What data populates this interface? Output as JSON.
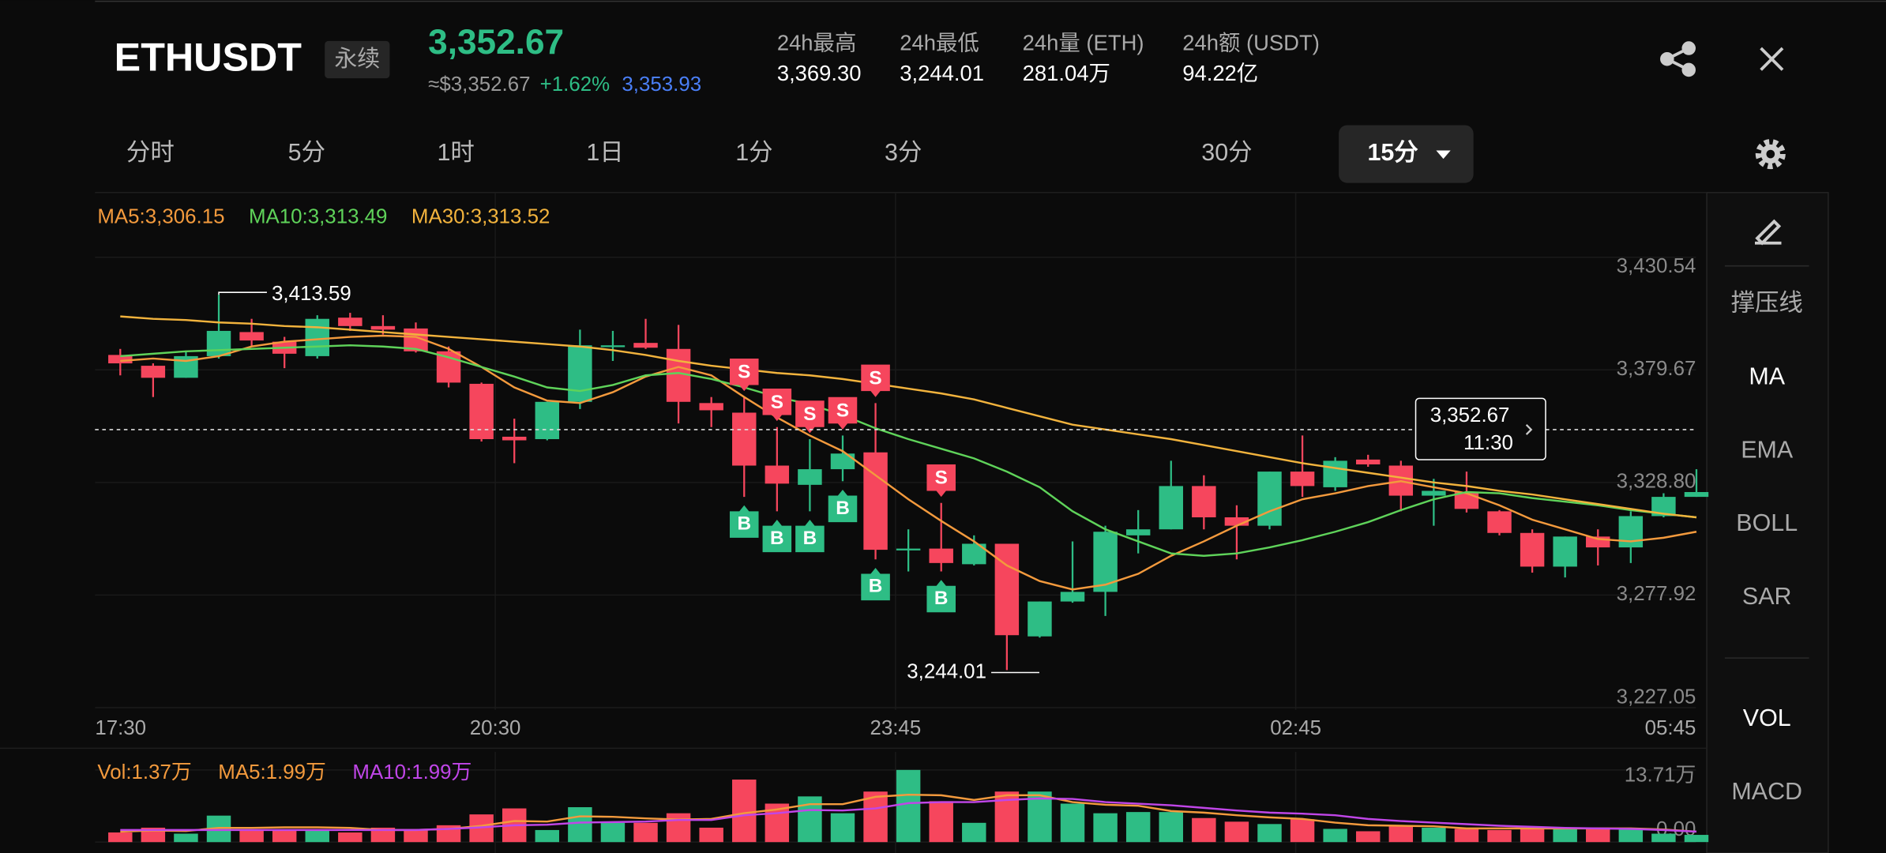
{
  "header": {
    "symbol": "ETHUSDT",
    "contract": "永续",
    "price": "3,352.67",
    "price_usd": "≈$3,352.67",
    "change": "+1.62%",
    "mark_price": "3,353.93",
    "stats": [
      {
        "label": "24h最高",
        "value": "3,369.30"
      },
      {
        "label": "24h最低",
        "value": "3,244.01"
      },
      {
        "label": "24h量 (ETH)",
        "value": "281.04万"
      },
      {
        "label": "24h额 (USDT)",
        "value": "94.22亿"
      }
    ]
  },
  "timeframes": {
    "tabs": [
      "分时",
      "5分",
      "1时",
      "1日",
      "1分",
      "3分",
      "15分",
      "30分"
    ],
    "selected": "15分"
  },
  "side_menu": {
    "tools": [
      "撑压线",
      "MA",
      "EMA",
      "BOLL",
      "SAR"
    ],
    "indicators": [
      "VOL",
      "MACD"
    ],
    "active": [
      "MA",
      "VOL"
    ]
  },
  "chart_data": [
    {
      "type": "candlestick",
      "up_color": "#2ebd85",
      "down_color": "#f6465d",
      "open": [
        3386.41,
        3381.52,
        3376.09,
        3385.87,
        3396.74,
        3392.39,
        3385.87,
        3403.26,
        3399.46,
        3398.37,
        3388.05,
        3373.37,
        3349.46,
        3348.37,
        3365.22,
        3390.22,
        3391.85,
        3389.13,
        3364.67,
        3360.33,
        3336.41,
        3327.72,
        3334.78,
        3342.39,
        3298.37,
        3298.91,
        3291.85,
        3301.09,
        3259.24,
        3275.0,
        3279.35,
        3304.89,
        3307.61,
        3327.17,
        3313.04,
        3309.24,
        3333.7,
        3326.63,
        3339.13,
        3336.41,
        3322.83,
        3324.46,
        3315.76,
        3305.98,
        3290.76,
        3304.35,
        3299.45,
        3313.59,
        3322.28
      ],
      "high": [
        3389.13,
        3382.61,
        3388.05,
        3413.59,
        3402.72,
        3394.57,
        3404.35,
        3405.44,
        3404.35,
        3401.09,
        3390.22,
        3373.91,
        3357.61,
        3365.22,
        3397.83,
        3397.28,
        3402.72,
        3400.0,
        3367.39,
        3367.39,
        3353.8,
        3348.37,
        3350.0,
        3364.67,
        3307.61,
        3319.56,
        3304.89,
        3301.09,
        3275.0,
        3302.17,
        3309.24,
        3316.3,
        3338.59,
        3332.06,
        3318.48,
        3333.7,
        3350.0,
        3340.22,
        3341.3,
        3338.59,
        3330.43,
        3333.7,
        3316.3,
        3307.61,
        3304.35,
        3307.61,
        3315.76,
        3323.91,
        3334.78
      ],
      "low": [
        3377.18,
        3367.39,
        3376.09,
        3384.78,
        3390.22,
        3380.44,
        3384.78,
        3397.28,
        3395.65,
        3387.5,
        3371.74,
        3347.28,
        3337.5,
        3347.83,
        3361.96,
        3383.7,
        3389.13,
        3355.44,
        3353.8,
        3322.28,
        3315.76,
        3315.76,
        3329.35,
        3294.02,
        3288.58,
        3288.58,
        3291.3,
        3244.01,
        3258.69,
        3274.45,
        3268.48,
        3296.74,
        3307.61,
        3307.61,
        3294.02,
        3307.61,
        3322.28,
        3325.0,
        3335.87,
        3315.76,
        3309.24,
        3315.22,
        3304.89,
        3288.04,
        3285.87,
        3291.3,
        3292.39,
        3313.04,
        3322.28
      ],
      "close": [
        3382.61,
        3376.09,
        3385.87,
        3397.28,
        3392.94,
        3386.96,
        3402.72,
        3399.46,
        3397.83,
        3388.05,
        3373.91,
        3348.37,
        3347.83,
        3365.22,
        3390.76,
        3390.76,
        3389.68,
        3365.22,
        3361.41,
        3336.41,
        3328.26,
        3334.78,
        3341.85,
        3298.37,
        3298.91,
        3292.39,
        3301.09,
        3259.78,
        3275.0,
        3279.35,
        3306.52,
        3307.61,
        3327.17,
        3313.04,
        3309.24,
        3333.7,
        3327.17,
        3338.59,
        3336.96,
        3322.83,
        3325.0,
        3316.85,
        3305.98,
        3290.76,
        3304.35,
        3299.45,
        3313.59,
        3322.28,
        3324.46
      ],
      "series": [
        {
          "name": "MA5:3,306.15",
          "color": "#f39a3d",
          "values": [
            3383.7,
            3384.78,
            3383.7,
            3385.87,
            3390.22,
            3392.39,
            3393.48,
            3394.57,
            3395.11,
            3394.57,
            3389.13,
            3380.98,
            3371.74,
            3365.76,
            3364.67,
            3369.57,
            3376.63,
            3380.98,
            3377.18,
            3367.39,
            3358.15,
            3350.0,
            3342.93,
            3332.06,
            3321.19,
            3311.41,
            3302.17,
            3291.3,
            3284.24,
            3280.43,
            3282.61,
            3287.5,
            3295.65,
            3302.17,
            3309.24,
            3315.76,
            3321.19,
            3323.91,
            3327.17,
            3329.35,
            3326.63,
            3323.91,
            3318.48,
            3311.96,
            3307.61,
            3303.26,
            3302.17,
            3303.8,
            3306.52
          ]
        },
        {
          "name": "MA10:3,313.49",
          "color": "#5fd35a",
          "values": [
            3385.87,
            3386.96,
            3388.05,
            3388.59,
            3389.13,
            3389.68,
            3390.22,
            3390.76,
            3390.22,
            3389.13,
            3385.33,
            3380.98,
            3376.63,
            3371.74,
            3370.11,
            3372.83,
            3377.18,
            3378.26,
            3375.54,
            3371.74,
            3367.39,
            3364.13,
            3359.24,
            3353.26,
            3348.37,
            3344.02,
            3339.67,
            3333.7,
            3326.63,
            3315.76,
            3307.61,
            3302.17,
            3296.74,
            3295.65,
            3296.74,
            3299.45,
            3302.72,
            3306.52,
            3310.87,
            3316.3,
            3321.19,
            3324.46,
            3323.91,
            3321.74,
            3320.11,
            3318.48,
            3316.3,
            3314.67,
            3313.04
          ]
        },
        {
          "name": "MA30:3,313.52",
          "color": "#f2b33d",
          "values": [
            3403.81,
            3402.72,
            3402.18,
            3401.09,
            3400.55,
            3399.46,
            3398.92,
            3397.83,
            3396.74,
            3395.65,
            3394.57,
            3393.48,
            3392.39,
            3391.31,
            3390.22,
            3388.59,
            3386.41,
            3383.7,
            3381.52,
            3379.89,
            3378.26,
            3377.18,
            3375.54,
            3373.37,
            3371.2,
            3369.02,
            3366.31,
            3362.5,
            3358.7,
            3354.89,
            3352.72,
            3350.54,
            3348.37,
            3345.65,
            3342.93,
            3340.22,
            3337.5,
            3335.33,
            3333.15,
            3330.98,
            3328.8,
            3327.17,
            3325.0,
            3323.37,
            3321.19,
            3319.02,
            3316.85,
            3314.67,
            3313.04
          ]
        }
      ],
      "ylim": [
        3226.08,
        3459.79
      ],
      "yticks": [
        {
          "value": 3227.05,
          "label": "3,227.05"
        },
        {
          "value": 3277.92,
          "label": "3,277.92"
        },
        {
          "value": 3328.8,
          "label": "3,328.80"
        },
        {
          "value": 3379.67,
          "label": "3,379.67"
        },
        {
          "value": 3430.54,
          "label": "3,430.54"
        }
      ],
      "grid": true,
      "xticks": [
        "17:30",
        "20:30",
        "23:45",
        "02:45",
        "05:45"
      ],
      "annotations": [
        {
          "value": 3413.59,
          "label": "3,413.59"
        },
        {
          "value": 3244.01,
          "label": "3,244.01"
        }
      ],
      "last_price": {
        "value": 3352.67,
        "label": "3,352.67"
      },
      "countdown": "11:30",
      "signals_sell": [
        null,
        null,
        null,
        null,
        null,
        null,
        null,
        null,
        null,
        null,
        null,
        null,
        null,
        null,
        null,
        null,
        null,
        null,
        null,
        "S",
        "S",
        "S",
        "S",
        "S",
        null,
        "S",
        null,
        null,
        null,
        null,
        null,
        null,
        null,
        null,
        null,
        null,
        null,
        null,
        null,
        null,
        null,
        null,
        null,
        null,
        null,
        null,
        null,
        null,
        null
      ],
      "signals_buy": [
        null,
        null,
        null,
        null,
        null,
        null,
        null,
        null,
        null,
        null,
        null,
        null,
        null,
        null,
        null,
        null,
        null,
        null,
        null,
        "B",
        "B",
        "B",
        "B",
        "B",
        null,
        "B",
        null,
        null,
        null,
        null,
        null,
        null,
        null,
        null,
        null,
        null,
        null,
        null,
        null,
        null,
        null,
        null,
        null,
        null,
        null,
        null,
        null,
        null,
        null
      ]
    },
    {
      "type": "bar",
      "label": "Vol:1.37万",
      "label_color": "#f39a3d",
      "values": [
        1.83,
        2.74,
        1.6,
        5.03,
        2.29,
        2.29,
        2.29,
        1.83,
        2.74,
        2.29,
        3.2,
        5.26,
        6.4,
        2.29,
        6.63,
        3.66,
        3.66,
        5.48,
        2.74,
        11.88,
        7.31,
        8.68,
        5.48,
        9.6,
        13.71,
        7.77,
        3.66,
        9.6,
        9.6,
        7.31,
        5.48,
        5.71,
        5.71,
        4.57,
        3.88,
        3.43,
        4.34,
        2.51,
        2.06,
        3.2,
        2.74,
        2.51,
        2.29,
        2.74,
        2.74,
        2.51,
        2.51,
        1.6,
        1.37
      ],
      "series": [
        {
          "name": "MA5:1.99万",
          "color": "#f39a3d",
          "values": [
            2.0,
            2.2,
            2.1,
            2.7,
            2.7,
            2.8,
            2.8,
            2.7,
            2.3,
            2.3,
            2.5,
            3.1,
            4.0,
            3.9,
            4.9,
            4.8,
            4.5,
            4.3,
            4.4,
            5.5,
            6.2,
            7.2,
            7.2,
            8.6,
            9.0,
            8.9,
            8.0,
            8.9,
            8.9,
            7.6,
            7.1,
            6.9,
            5.9,
            5.6,
            5.1,
            4.7,
            4.4,
            3.7,
            3.2,
            3.1,
            3.0,
            2.6,
            2.6,
            2.6,
            2.6,
            2.6,
            2.6,
            2.4,
            1.99
          ]
        },
        {
          "name": "MA10:1.99万",
          "color": "#c046e8",
          "values": [
            2.3,
            2.3,
            2.3,
            2.3,
            2.3,
            2.3,
            2.3,
            2.3,
            2.3,
            2.3,
            2.5,
            2.8,
            3.2,
            3.3,
            3.7,
            3.8,
            3.9,
            4.2,
            4.2,
            5.1,
            5.5,
            6.1,
            6.0,
            6.4,
            7.4,
            7.6,
            7.6,
            8.0,
            8.3,
            8.2,
            7.6,
            7.3,
            7.0,
            6.5,
            6.0,
            5.6,
            5.4,
            5.1,
            4.4,
            4.0,
            3.7,
            3.4,
            3.1,
            2.9,
            2.7,
            2.6,
            2.5,
            2.3,
            1.99
          ]
        }
      ],
      "ylim": [
        0,
        16
      ],
      "yticks": [
        {
          "value": 0,
          "label": "0.00"
        },
        {
          "value": 13.71,
          "label": "13.71万"
        }
      ]
    }
  ]
}
